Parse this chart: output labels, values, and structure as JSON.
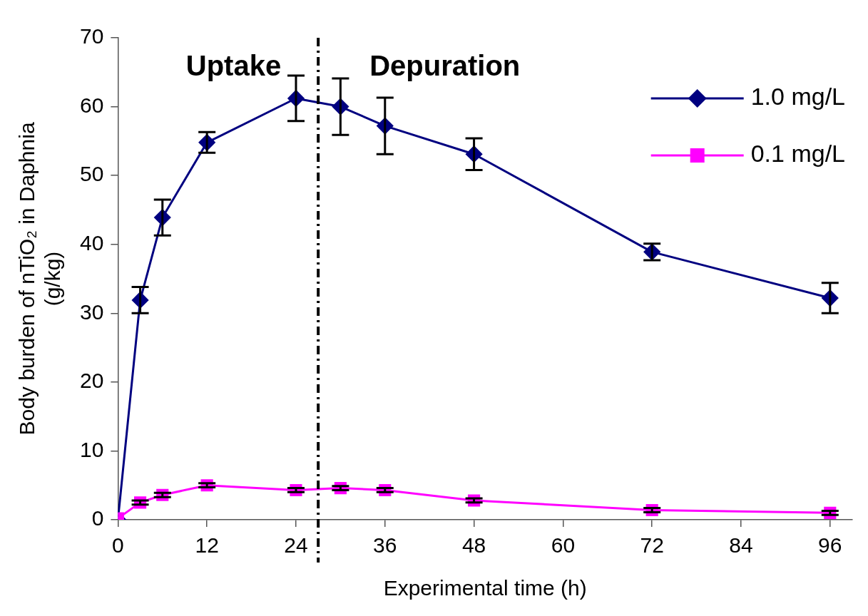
{
  "chart_data": {
    "type": "line",
    "xlabel": "Experimental time (h)",
    "ylabel": "Body burden of nTiO₂ in Daphnia\n(g/kg)",
    "x": [
      0,
      3,
      6,
      12,
      24,
      30,
      36,
      48,
      72,
      96
    ],
    "series": [
      {
        "name": "1.0 mg/L",
        "color": "#000080",
        "marker": "diamond",
        "values": [
          0,
          31.9,
          43.9,
          54.8,
          61.2,
          60.0,
          57.2,
          53.1,
          38.9,
          32.2
        ],
        "errors": [
          null,
          1.9,
          2.6,
          1.5,
          3.3,
          4.1,
          4.1,
          2.3,
          1.2,
          2.2
        ]
      },
      {
        "name": "0.1 mg/L",
        "color": "#ff00ff",
        "marker": "square",
        "values": [
          0.2,
          2.5,
          3.6,
          5.0,
          4.3,
          4.6,
          4.3,
          2.8,
          1.4,
          1.0
        ],
        "errors": [
          null,
          0.3,
          0.3,
          0.3,
          0.3,
          0.3,
          0.3,
          0.3,
          0.3,
          0.3
        ]
      }
    ],
    "xlim": [
      0,
      99
    ],
    "xticks": [
      0,
      12,
      24,
      36,
      48,
      60,
      72,
      84,
      96
    ],
    "ylim": [
      0,
      70
    ],
    "yticks": [
      0,
      10,
      20,
      30,
      40,
      50,
      60,
      70
    ],
    "ref_lines": [
      {
        "axis": "x",
        "value": 27,
        "color": "#000000",
        "line_style": "dashed"
      }
    ],
    "annotations": [
      "Uptake",
      "Depuration"
    ],
    "grid": false,
    "legend": "top right",
    "line_style": "solid"
  }
}
